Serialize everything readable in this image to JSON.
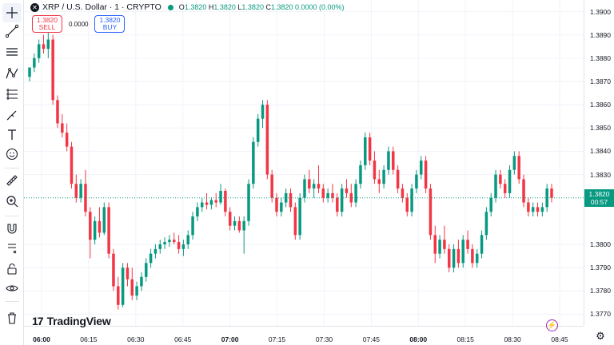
{
  "symbol": {
    "title": "XRP / U.S. Dollar · 1 · CRYPTO",
    "icon": "xrp-logo-icon",
    "open_label": "O",
    "open": "1.3820",
    "high_label": "H",
    "high": "1.3820",
    "low_label": "L",
    "low": "1.3820",
    "close_label": "C",
    "close": "1.3820",
    "change": "0.0000 (0.00%)"
  },
  "trade": {
    "sell_price": "1.3820",
    "sell_label": "SELL",
    "spread": "0.0000",
    "buy_price": "1.3820",
    "buy_label": "BUY"
  },
  "toolbar": {
    "items": [
      "crosshair-icon",
      "trend-line-icon",
      "horizontal-lines-icon",
      "pattern-icon",
      "fib-retracement-icon",
      "brush-icon",
      "text-icon",
      "emoji-icon",
      "ruler-icon",
      "zoom-in-icon",
      "magnet-icon",
      "lock-drawings-icon",
      "visibility-icon",
      "trash-icon"
    ]
  },
  "price_axis": {
    "ticks": [
      "1.3900",
      "1.3890",
      "1.3880",
      "1.3870",
      "1.3860",
      "1.3850",
      "1.3840",
      "1.3830",
      "1.3800",
      "1.3790",
      "1.3780",
      "1.3770"
    ],
    "current_price": "1.3820",
    "countdown": "00:57"
  },
  "time_axis": {
    "ticks": [
      {
        "label": "06:00",
        "bold": true
      },
      {
        "label": "06:15",
        "bold": false
      },
      {
        "label": "06:30",
        "bold": false
      },
      {
        "label": "06:45",
        "bold": false
      },
      {
        "label": "07:00",
        "bold": true
      },
      {
        "label": "07:15",
        "bold": false
      },
      {
        "label": "07:30",
        "bold": false
      },
      {
        "label": "07:45",
        "bold": false
      },
      {
        "label": "08:00",
        "bold": true
      },
      {
        "label": "08:15",
        "bold": false
      },
      {
        "label": "08:30",
        "bold": false
      },
      {
        "label": "08:45",
        "bold": false
      }
    ]
  },
  "branding": {
    "name": "TradingView"
  },
  "colors": {
    "up": "#089981",
    "down": "#f23645",
    "grid": "#f0f3fa",
    "accent": "#2962ff"
  },
  "chart_data": {
    "type": "candlestick",
    "ylim": [
      1.3765,
      1.3905
    ],
    "x_range": [
      "06:00",
      "08:45"
    ],
    "candles": [
      [
        1.3872,
        1.3876,
        1.387,
        1.3876
      ],
      [
        1.3876,
        1.3882,
        1.3874,
        1.388
      ],
      [
        1.388,
        1.3888,
        1.3878,
        1.3886
      ],
      [
        1.3886,
        1.389,
        1.3882,
        1.3884
      ],
      [
        1.3884,
        1.3891,
        1.388,
        1.3888
      ],
      [
        1.3888,
        1.389,
        1.386,
        1.3862
      ],
      [
        1.3862,
        1.3864,
        1.385,
        1.3852
      ],
      [
        1.3852,
        1.3856,
        1.3846,
        1.3848
      ],
      [
        1.3848,
        1.3852,
        1.384,
        1.3842
      ],
      [
        1.3842,
        1.3844,
        1.3824,
        1.3826
      ],
      [
        1.3826,
        1.383,
        1.3818,
        1.382
      ],
      [
        1.382,
        1.3828,
        1.3818,
        1.3826
      ],
      [
        1.3826,
        1.3832,
        1.3812,
        1.3814
      ],
      [
        1.3814,
        1.3816,
        1.3794,
        1.3802
      ],
      [
        1.3802,
        1.3812,
        1.38,
        1.381
      ],
      [
        1.381,
        1.3816,
        1.3803,
        1.3805
      ],
      [
        1.3805,
        1.3818,
        1.3804,
        1.3816
      ],
      [
        1.3816,
        1.3818,
        1.3794,
        1.3796
      ],
      [
        1.3796,
        1.3798,
        1.378,
        1.3782
      ],
      [
        1.3782,
        1.3786,
        1.3772,
        1.3774
      ],
      [
        1.3774,
        1.3792,
        1.3773,
        1.379
      ],
      [
        1.379,
        1.3792,
        1.3782,
        1.3785
      ],
      [
        1.3785,
        1.379,
        1.3776,
        1.3778
      ],
      [
        1.3778,
        1.3784,
        1.3776,
        1.3782
      ],
      [
        1.3782,
        1.3788,
        1.378,
        1.3786
      ],
      [
        1.3786,
        1.3794,
        1.3784,
        1.3792
      ],
      [
        1.3792,
        1.3798,
        1.379,
        1.3796
      ],
      [
        1.3796,
        1.38,
        1.3794,
        1.3798
      ],
      [
        1.3798,
        1.3802,
        1.3796,
        1.38
      ],
      [
        1.38,
        1.3803,
        1.3798,
        1.3801
      ],
      [
        1.3801,
        1.3804,
        1.3799,
        1.3802
      ],
      [
        1.3802,
        1.3805,
        1.38,
        1.3801
      ],
      [
        1.3801,
        1.3804,
        1.3796,
        1.3798
      ],
      [
        1.3798,
        1.3802,
        1.3795,
        1.38
      ],
      [
        1.38,
        1.3806,
        1.3798,
        1.3804
      ],
      [
        1.3804,
        1.3814,
        1.3802,
        1.3812
      ],
      [
        1.3812,
        1.3818,
        1.381,
        1.3816
      ],
      [
        1.3816,
        1.382,
        1.3814,
        1.3818
      ],
      [
        1.3818,
        1.3822,
        1.3815,
        1.3817
      ],
      [
        1.3817,
        1.382,
        1.3815,
        1.3819
      ],
      [
        1.3819,
        1.3822,
        1.3816,
        1.3818
      ],
      [
        1.3818,
        1.3826,
        1.3817,
        1.3823
      ],
      [
        1.3823,
        1.3824,
        1.3812,
        1.3814
      ],
      [
        1.3814,
        1.3816,
        1.3806,
        1.3808
      ],
      [
        1.3808,
        1.3812,
        1.3806,
        1.381
      ],
      [
        1.381,
        1.3812,
        1.3805,
        1.3806
      ],
      [
        1.3806,
        1.3812,
        1.3796,
        1.381
      ],
      [
        1.381,
        1.3828,
        1.3808,
        1.3826
      ],
      [
        1.3826,
        1.3846,
        1.3824,
        1.3844
      ],
      [
        1.3844,
        1.3856,
        1.3842,
        1.3854
      ],
      [
        1.3854,
        1.3862,
        1.385,
        1.386
      ],
      [
        1.386,
        1.3862,
        1.3828,
        1.383
      ],
      [
        1.383,
        1.3832,
        1.3818,
        1.382
      ],
      [
        1.382,
        1.3822,
        1.3812,
        1.3814
      ],
      [
        1.3814,
        1.382,
        1.3812,
        1.3818
      ],
      [
        1.3818,
        1.3824,
        1.3816,
        1.3822
      ],
      [
        1.3822,
        1.3824,
        1.3814,
        1.3816
      ],
      [
        1.3816,
        1.3818,
        1.3802,
        1.3804
      ],
      [
        1.3804,
        1.3822,
        1.3802,
        1.382
      ],
      [
        1.382,
        1.383,
        1.3818,
        1.3828
      ],
      [
        1.3828,
        1.3832,
        1.3822,
        1.3824
      ],
      [
        1.3824,
        1.3828,
        1.382,
        1.3826
      ],
      [
        1.3826,
        1.3834,
        1.3822,
        1.3824
      ],
      [
        1.3824,
        1.3826,
        1.3818,
        1.382
      ],
      [
        1.382,
        1.3824,
        1.3818,
        1.3822
      ],
      [
        1.3822,
        1.3826,
        1.3818,
        1.382
      ],
      [
        1.382,
        1.3822,
        1.3812,
        1.3814
      ],
      [
        1.3814,
        1.3826,
        1.3812,
        1.3824
      ],
      [
        1.3824,
        1.3828,
        1.382,
        1.3822
      ],
      [
        1.3822,
        1.3826,
        1.3816,
        1.3818
      ],
      [
        1.3818,
        1.3828,
        1.3816,
        1.3826
      ],
      [
        1.3826,
        1.3836,
        1.3824,
        1.3834
      ],
      [
        1.3834,
        1.3848,
        1.3832,
        1.3846
      ],
      [
        1.3846,
        1.3848,
        1.3834,
        1.3836
      ],
      [
        1.3836,
        1.384,
        1.3826,
        1.3828
      ],
      [
        1.3828,
        1.3832,
        1.3822,
        1.3826
      ],
      [
        1.3826,
        1.3834,
        1.3824,
        1.3832
      ],
      [
        1.3832,
        1.3842,
        1.383,
        1.384
      ],
      [
        1.384,
        1.3842,
        1.383,
        1.3832
      ],
      [
        1.3832,
        1.3834,
        1.3822,
        1.3824
      ],
      [
        1.3824,
        1.3826,
        1.3818,
        1.382
      ],
      [
        1.382,
        1.3822,
        1.3812,
        1.3814
      ],
      [
        1.3814,
        1.3826,
        1.3812,
        1.3824
      ],
      [
        1.3824,
        1.3832,
        1.3822,
        1.383
      ],
      [
        1.383,
        1.3838,
        1.3828,
        1.3836
      ],
      [
        1.3836,
        1.3838,
        1.3822,
        1.3824
      ],
      [
        1.3824,
        1.3826,
        1.3802,
        1.3804
      ],
      [
        1.3804,
        1.3808,
        1.3792,
        1.3796
      ],
      [
        1.3796,
        1.3804,
        1.3794,
        1.3802
      ],
      [
        1.3802,
        1.3808,
        1.3796,
        1.3798
      ],
      [
        1.3798,
        1.38,
        1.3788,
        1.379
      ],
      [
        1.379,
        1.38,
        1.3788,
        1.3798
      ],
      [
        1.3798,
        1.3802,
        1.379,
        1.3792
      ],
      [
        1.3792,
        1.3804,
        1.379,
        1.3802
      ],
      [
        1.3802,
        1.3806,
        1.3796,
        1.3798
      ],
      [
        1.3798,
        1.38,
        1.379,
        1.3792
      ],
      [
        1.3792,
        1.3798,
        1.379,
        1.3796
      ],
      [
        1.3796,
        1.3806,
        1.3794,
        1.3804
      ],
      [
        1.3804,
        1.3816,
        1.3802,
        1.3814
      ],
      [
        1.3814,
        1.3822,
        1.3812,
        1.382
      ],
      [
        1.382,
        1.3832,
        1.3818,
        1.383
      ],
      [
        1.383,
        1.3832,
        1.3824,
        1.3826
      ],
      [
        1.3826,
        1.3828,
        1.382,
        1.3822
      ],
      [
        1.3822,
        1.3834,
        1.382,
        1.3832
      ],
      [
        1.3832,
        1.384,
        1.383,
        1.3838
      ],
      [
        1.3838,
        1.384,
        1.3826,
        1.3828
      ],
      [
        1.3828,
        1.383,
        1.3816,
        1.3818
      ],
      [
        1.3818,
        1.382,
        1.3812,
        1.3814
      ],
      [
        1.3814,
        1.3818,
        1.3812,
        1.3816
      ],
      [
        1.3816,
        1.3818,
        1.3812,
        1.3814
      ],
      [
        1.3814,
        1.3818,
        1.3812,
        1.3816
      ],
      [
        1.3816,
        1.3826,
        1.3814,
        1.3824
      ],
      [
        1.3824,
        1.3826,
        1.3818,
        1.382
      ]
    ]
  }
}
